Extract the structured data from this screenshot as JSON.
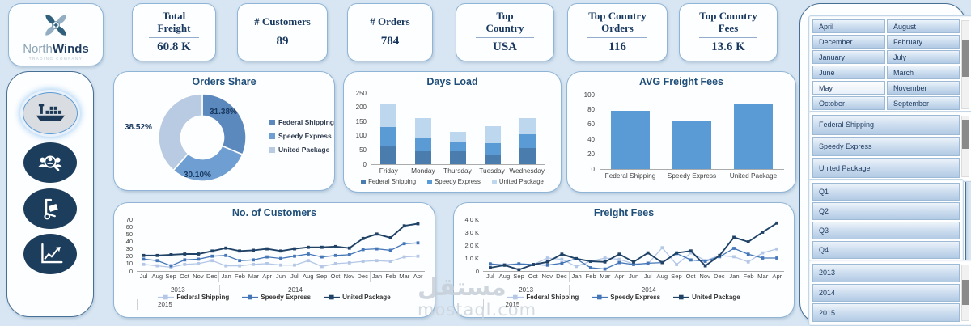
{
  "logo": {
    "brand_first": "North",
    "brand_second": "Winds",
    "subtitle": "TRADING COMPANY"
  },
  "kpis": [
    {
      "title": "Total Freight",
      "value": "60.8 K"
    },
    {
      "title": "# Customers",
      "value": "89"
    },
    {
      "title": "# Orders",
      "value": "784"
    },
    {
      "title": "Top Country",
      "value": "USA"
    },
    {
      "title": "Top Country Orders",
      "value": "116"
    },
    {
      "title": "Top Country Fees",
      "value": "13.6 K"
    }
  ],
  "nav": {
    "items": [
      "ship",
      "customers-search",
      "hand-truck",
      "trend-chart"
    ],
    "active": "ship"
  },
  "slicers": {
    "months": {
      "items": [
        "April",
        "August",
        "December",
        "February",
        "January",
        "July",
        "June",
        "March",
        "May",
        "November",
        "October",
        "September"
      ],
      "light": [
        "May"
      ]
    },
    "shippers": {
      "items": [
        "Federal Shipping",
        "Speedy Express",
        "United Package"
      ]
    },
    "quarters": {
      "items": [
        "Q1",
        "Q2",
        "Q3",
        "Q4"
      ]
    },
    "years": {
      "items": [
        "2013",
        "2014",
        "2015"
      ]
    }
  },
  "chart_data": [
    {
      "type": "pie",
      "donut": true,
      "title": "Orders Share",
      "labels": [
        "Federal Shipping",
        "Speedy Express",
        "United Package"
      ],
      "values": [
        31.38,
        30.1,
        38.52
      ],
      "value_labels": [
        "31.38%",
        "30.10%",
        "38.52%"
      ],
      "colors": [
        "#5b89bd",
        "#6f9fd2",
        "#b8cbe3"
      ],
      "legend_position": "right"
    },
    {
      "type": "bar",
      "stacked": true,
      "title": "Days Load",
      "categories": [
        "Friday",
        "Monday",
        "Thursday",
        "Tuesday",
        "Wednesday"
      ],
      "series": [
        {
          "name": "Federal Shipping",
          "color": "#4a7dad",
          "values": [
            65,
            45,
            45,
            35,
            57
          ]
        },
        {
          "name": "Speedy Express",
          "color": "#5b9bd5",
          "values": [
            67,
            47,
            33,
            39,
            49
          ]
        },
        {
          "name": "United Package",
          "color": "#bdd7ee",
          "values": [
            78,
            71,
            35,
            60,
            55
          ]
        }
      ],
      "ylim": [
        0,
        250
      ],
      "yticks": [
        0,
        50,
        100,
        150,
        200,
        250
      ],
      "grid": false,
      "legend_position": "bottom"
    },
    {
      "type": "bar",
      "stacked": false,
      "title": "AVG Freight Fees",
      "categories": [
        "Federal Shipping",
        "Speedy Express",
        "United Package"
      ],
      "series": [
        {
          "name": "AVG Freight Fees",
          "color": "#5b9bd5",
          "values": [
            78,
            64,
            87
          ]
        }
      ],
      "ylim": [
        0,
        100
      ],
      "yticks": [
        0,
        20,
        40,
        60,
        80,
        100
      ],
      "grid": false
    },
    {
      "type": "line",
      "title": "No. of Customers",
      "x": [
        "Jul",
        "Aug",
        "Sep",
        "Oct",
        "Nov",
        "Dec",
        "Jan",
        "Feb",
        "Mar",
        "Apr",
        "Jun",
        "Jul",
        "Aug",
        "Sep",
        "Oct",
        "Nov",
        "Dec",
        "Jan",
        "Feb",
        "Mar",
        "Apr"
      ],
      "year_groups": [
        {
          "label": "2013",
          "span": 6
        },
        {
          "label": "2014",
          "span": 11
        },
        {
          "label": "2015",
          "span": 4
        }
      ],
      "series": [
        {
          "name": "Federal Shipping",
          "color": "#b4c7e7",
          "values": [
            9,
            7,
            5,
            9,
            10,
            14,
            7,
            7,
            9,
            10,
            8,
            8,
            14,
            6,
            10,
            11,
            13,
            14,
            13,
            19,
            20
          ]
        },
        {
          "name": "Speedy Express",
          "color": "#4577b8",
          "values": [
            16,
            14,
            7,
            15,
            16,
            20,
            21,
            14,
            15,
            19,
            17,
            20,
            23,
            19,
            21,
            22,
            29,
            30,
            28,
            37,
            38
          ]
        },
        {
          "name": "United Package",
          "color": "#1f4266",
          "values": [
            21,
            21,
            22,
            23,
            23,
            27,
            31,
            27,
            28,
            30,
            27,
            30,
            32,
            32,
            33,
            31,
            44,
            50,
            45,
            61,
            64
          ]
        }
      ],
      "ylim": [
        0,
        70
      ],
      "yticks": [
        0,
        10,
        20,
        30,
        40,
        50,
        60,
        70
      ],
      "grid": false,
      "legend_position": "bottom"
    },
    {
      "type": "line",
      "title": "Freight Fees",
      "x": [
        "Jul",
        "Aug",
        "Sep",
        "Oct",
        "Nov",
        "Dec",
        "Jan",
        "Feb",
        "Mar",
        "Apr",
        "Jun",
        "Jul",
        "Aug",
        "Sep",
        "Oct",
        "Nov",
        "Dec",
        "Jan",
        "Feb",
        "Mar",
        "Apr"
      ],
      "year_groups": [
        {
          "label": "2013",
          "span": 6
        },
        {
          "label": "2014",
          "span": 11
        },
        {
          "label": "2015",
          "span": 4
        }
      ],
      "series": [
        {
          "name": "Federal Shipping",
          "color": "#b4c7e7",
          "values": [
            500,
            500,
            550,
            500,
            1000,
            900,
            350,
            750,
            1000,
            900,
            550,
            550,
            1800,
            500,
            1400,
            800,
            1200,
            1100,
            700,
            1400,
            1700
          ]
        },
        {
          "name": "Speedy Express",
          "color": "#4577b8",
          "values": [
            550,
            450,
            550,
            500,
            450,
            600,
            950,
            250,
            150,
            650,
            500,
            600,
            650,
            1350,
            850,
            750,
            1100,
            1750,
            1300,
            1000,
            1000
          ]
        },
        {
          "name": "United Package",
          "color": "#1f4266",
          "values": [
            250,
            450,
            100,
            500,
            700,
            1300,
            950,
            750,
            700,
            1300,
            700,
            1400,
            650,
            1400,
            1550,
            400,
            1200,
            2600,
            2250,
            3000,
            3700
          ]
        }
      ],
      "ylim": [
        0,
        4000
      ],
      "yticks": [
        0,
        1000,
        2000,
        3000,
        4000
      ],
      "ytick_labels": [
        "0",
        "1.0 K",
        "2.0 K",
        "3.0 K",
        "4.0 K"
      ],
      "grid": false,
      "legend_position": "bottom"
    }
  ],
  "watermark": {
    "arabic": "مستقل",
    "domain": "mostaql.com"
  }
}
